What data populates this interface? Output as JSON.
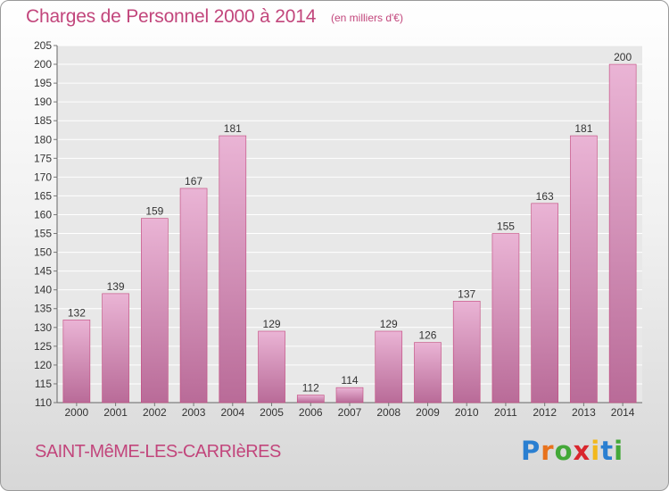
{
  "header": {
    "title": "Charges de Personnel 2000 à 2014",
    "subtitle": "(en milliers d'€)"
  },
  "footer": {
    "town": "SAINT-MêME-LES-CARRIèRES",
    "logo_letters": [
      "P",
      "r",
      "o",
      "x",
      "i",
      "t",
      "i"
    ],
    "logo_colors": [
      "#2a7fd1",
      "#e8721c",
      "#43a838",
      "#d9262d",
      "#f2b81c",
      "#2a7fd1",
      "#43a838"
    ]
  },
  "colors": {
    "accent": "#c2467c",
    "bar_light": "#eab4d5",
    "bar_dark": "#b96b98"
  },
  "chart_data": {
    "type": "bar",
    "title": "Charges de Personnel 2000 à 2014",
    "subtitle": "(en milliers d'€)",
    "xlabel": "",
    "ylabel": "",
    "categories": [
      "2000",
      "2001",
      "2002",
      "2003",
      "2004",
      "2005",
      "2006",
      "2007",
      "2008",
      "2009",
      "2010",
      "2011",
      "2012",
      "2013",
      "2014"
    ],
    "values": [
      132,
      139,
      159,
      167,
      181,
      129,
      112,
      114,
      129,
      126,
      137,
      155,
      163,
      181,
      200
    ],
    "ylim": [
      110,
      205
    ],
    "yticks": [
      110,
      115,
      120,
      125,
      130,
      135,
      140,
      145,
      150,
      155,
      160,
      165,
      170,
      175,
      180,
      185,
      190,
      195,
      200,
      205
    ],
    "grid": true,
    "legend": "none"
  }
}
